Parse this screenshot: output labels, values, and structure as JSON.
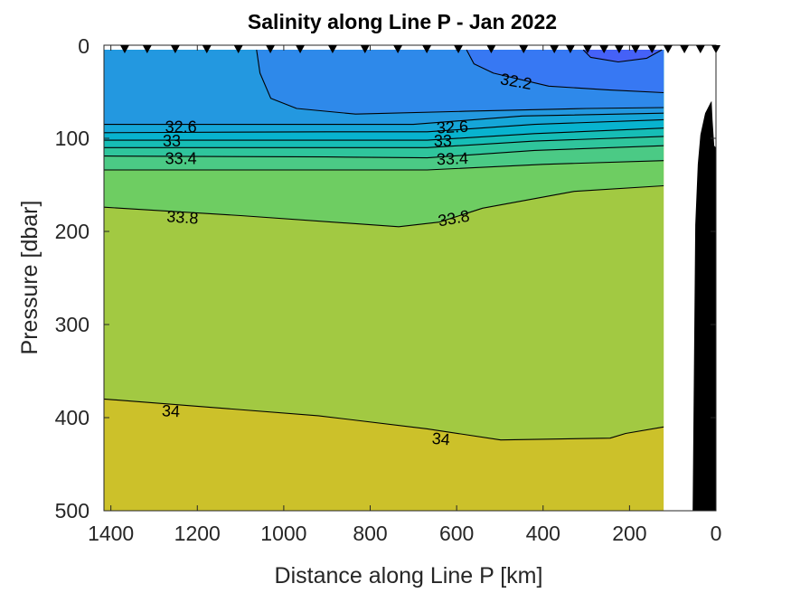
{
  "chart_data": {
    "type": "contour",
    "title": "Salinity along Line P - Jan 2022",
    "xlabel": "Distance along Line P [km]",
    "ylabel": "Pressure [dbar]",
    "xlim": [
      1416,
      0
    ],
    "x_reversed": true,
    "ylim": [
      0,
      500
    ],
    "y_reversed": true,
    "xticks": [
      1400,
      1200,
      1000,
      800,
      600,
      400,
      200,
      0
    ],
    "yticks": [
      0,
      100,
      200,
      300,
      400,
      500
    ],
    "data_extent_km": [
      1416,
      121
    ],
    "stations_km": [
      1368,
      1316,
      1251,
      1178,
      1105,
      1031,
      962,
      887,
      812,
      736,
      669,
      596,
      520,
      445,
      374,
      337,
      297,
      259,
      224,
      186,
      148,
      111,
      73,
      36,
      0
    ],
    "bands": [
      {
        "range": "<32.0",
        "color": "#4561f7"
      },
      {
        "range": "32.0-32.2",
        "color": "#3778f3"
      },
      {
        "range": "32.2-32.4",
        "color": "#2e89ea"
      },
      {
        "range": "32.4-32.6",
        "color": "#2398e0"
      },
      {
        "range": "32.6-32.8",
        "color": "#15a6d8"
      },
      {
        "range": "32.8-33.0",
        "color": "#08b3cf"
      },
      {
        "range": "33.0-33.2",
        "color": "#16bdb6"
      },
      {
        "range": "33.2-33.4",
        "color": "#2fc59c"
      },
      {
        "range": "33.4-33.6",
        "color": "#4bca85"
      },
      {
        "range": "33.6-33.8",
        "color": "#6ecd62"
      },
      {
        "range": "33.8-34.0",
        "color": "#a2c942"
      },
      {
        "range": ">34.0",
        "color": "#ccc12a"
      }
    ],
    "contours": [
      {
        "level": 34.0,
        "points": [
          [
            1416,
            380
          ],
          [
            920,
            398
          ],
          [
            668,
            412
          ],
          [
            498,
            424
          ],
          [
            245,
            422
          ],
          [
            209,
            417
          ],
          [
            121,
            410
          ]
        ]
      },
      {
        "level": 33.8,
        "points": [
          [
            1416,
            174
          ],
          [
            1100,
            183
          ],
          [
            734,
            195
          ],
          [
            640,
            190
          ],
          [
            540,
            175
          ],
          [
            328,
            157
          ],
          [
            121,
            151
          ]
        ]
      },
      {
        "level": 33.6,
        "points": [
          [
            1416,
            134
          ],
          [
            900,
            134
          ],
          [
            668,
            134
          ],
          [
            400,
            128
          ],
          [
            121,
            124
          ]
        ]
      },
      {
        "level": 33.4,
        "points": [
          [
            1416,
            119
          ],
          [
            900,
            120
          ],
          [
            668,
            121
          ],
          [
            420,
            113
          ],
          [
            121,
            108
          ]
        ]
      },
      {
        "level": 33.2,
        "points": [
          [
            1416,
            110
          ],
          [
            900,
            110
          ],
          [
            668,
            110
          ],
          [
            420,
            103
          ],
          [
            121,
            98
          ]
        ]
      },
      {
        "level": 33.0,
        "points": [
          [
            1416,
            102
          ],
          [
            900,
            102
          ],
          [
            668,
            102
          ],
          [
            420,
            95
          ],
          [
            121,
            89
          ]
        ]
      },
      {
        "level": 32.8,
        "points": [
          [
            1416,
            94
          ],
          [
            900,
            93
          ],
          [
            668,
            93
          ],
          [
            420,
            85
          ],
          [
            121,
            80
          ]
        ]
      },
      {
        "level": 32.6,
        "points": [
          [
            1416,
            85
          ],
          [
            900,
            85
          ],
          [
            700,
            85
          ],
          [
            448,
            76
          ],
          [
            121,
            73
          ]
        ]
      },
      {
        "level": 32.4,
        "points": [
          [
            1063,
            5
          ],
          [
            1055,
            30
          ],
          [
            1030,
            57
          ],
          [
            970,
            68
          ],
          [
            834,
            74
          ],
          [
            580,
            71
          ],
          [
            300,
            68
          ],
          [
            121,
            67
          ]
        ]
      },
      {
        "level": 32.2,
        "points": [
          [
            577,
            5
          ],
          [
            560,
            20
          ],
          [
            515,
            30
          ],
          [
            387,
            44
          ],
          [
            250,
            48
          ],
          [
            121,
            51
          ]
        ]
      },
      {
        "level": 32.0,
        "points": [
          [
            307,
            5
          ],
          [
            290,
            13
          ],
          [
            226,
            18
          ],
          [
            160,
            14
          ],
          [
            125,
            5
          ]
        ]
      }
    ],
    "contour_labels": [
      {
        "text": "32.6",
        "km": 1238,
        "dbar": 87,
        "angle": 0
      },
      {
        "text": "32.6",
        "km": 610,
        "dbar": 87,
        "angle": -3
      },
      {
        "text": "33",
        "km": 1259,
        "dbar": 102,
        "angle": 0
      },
      {
        "text": "33",
        "km": 632,
        "dbar": 102,
        "angle": 0
      },
      {
        "text": "33.4",
        "km": 1238,
        "dbar": 121,
        "angle": 0
      },
      {
        "text": "33.4",
        "km": 610,
        "dbar": 121,
        "angle": -2
      },
      {
        "text": "33.8",
        "km": 1234,
        "dbar": 184,
        "angle": 4
      },
      {
        "text": "33.8",
        "km": 607,
        "dbar": 185,
        "angle": -10
      },
      {
        "text": "34",
        "km": 1261,
        "dbar": 392,
        "angle": 3
      },
      {
        "text": "34",
        "km": 636,
        "dbar": 422,
        "angle": 5
      },
      {
        "text": "32.2",
        "km": 462,
        "dbar": 38,
        "angle": 10
      }
    ],
    "bathymetry": [
      [
        54,
        500
      ],
      [
        48,
        193
      ],
      [
        42,
        128
      ],
      [
        36,
        96
      ],
      [
        25,
        73
      ],
      [
        13,
        62
      ],
      [
        10,
        60
      ],
      [
        8,
        80
      ],
      [
        4,
        108
      ],
      [
        0,
        110
      ],
      [
        0,
        500
      ]
    ]
  }
}
